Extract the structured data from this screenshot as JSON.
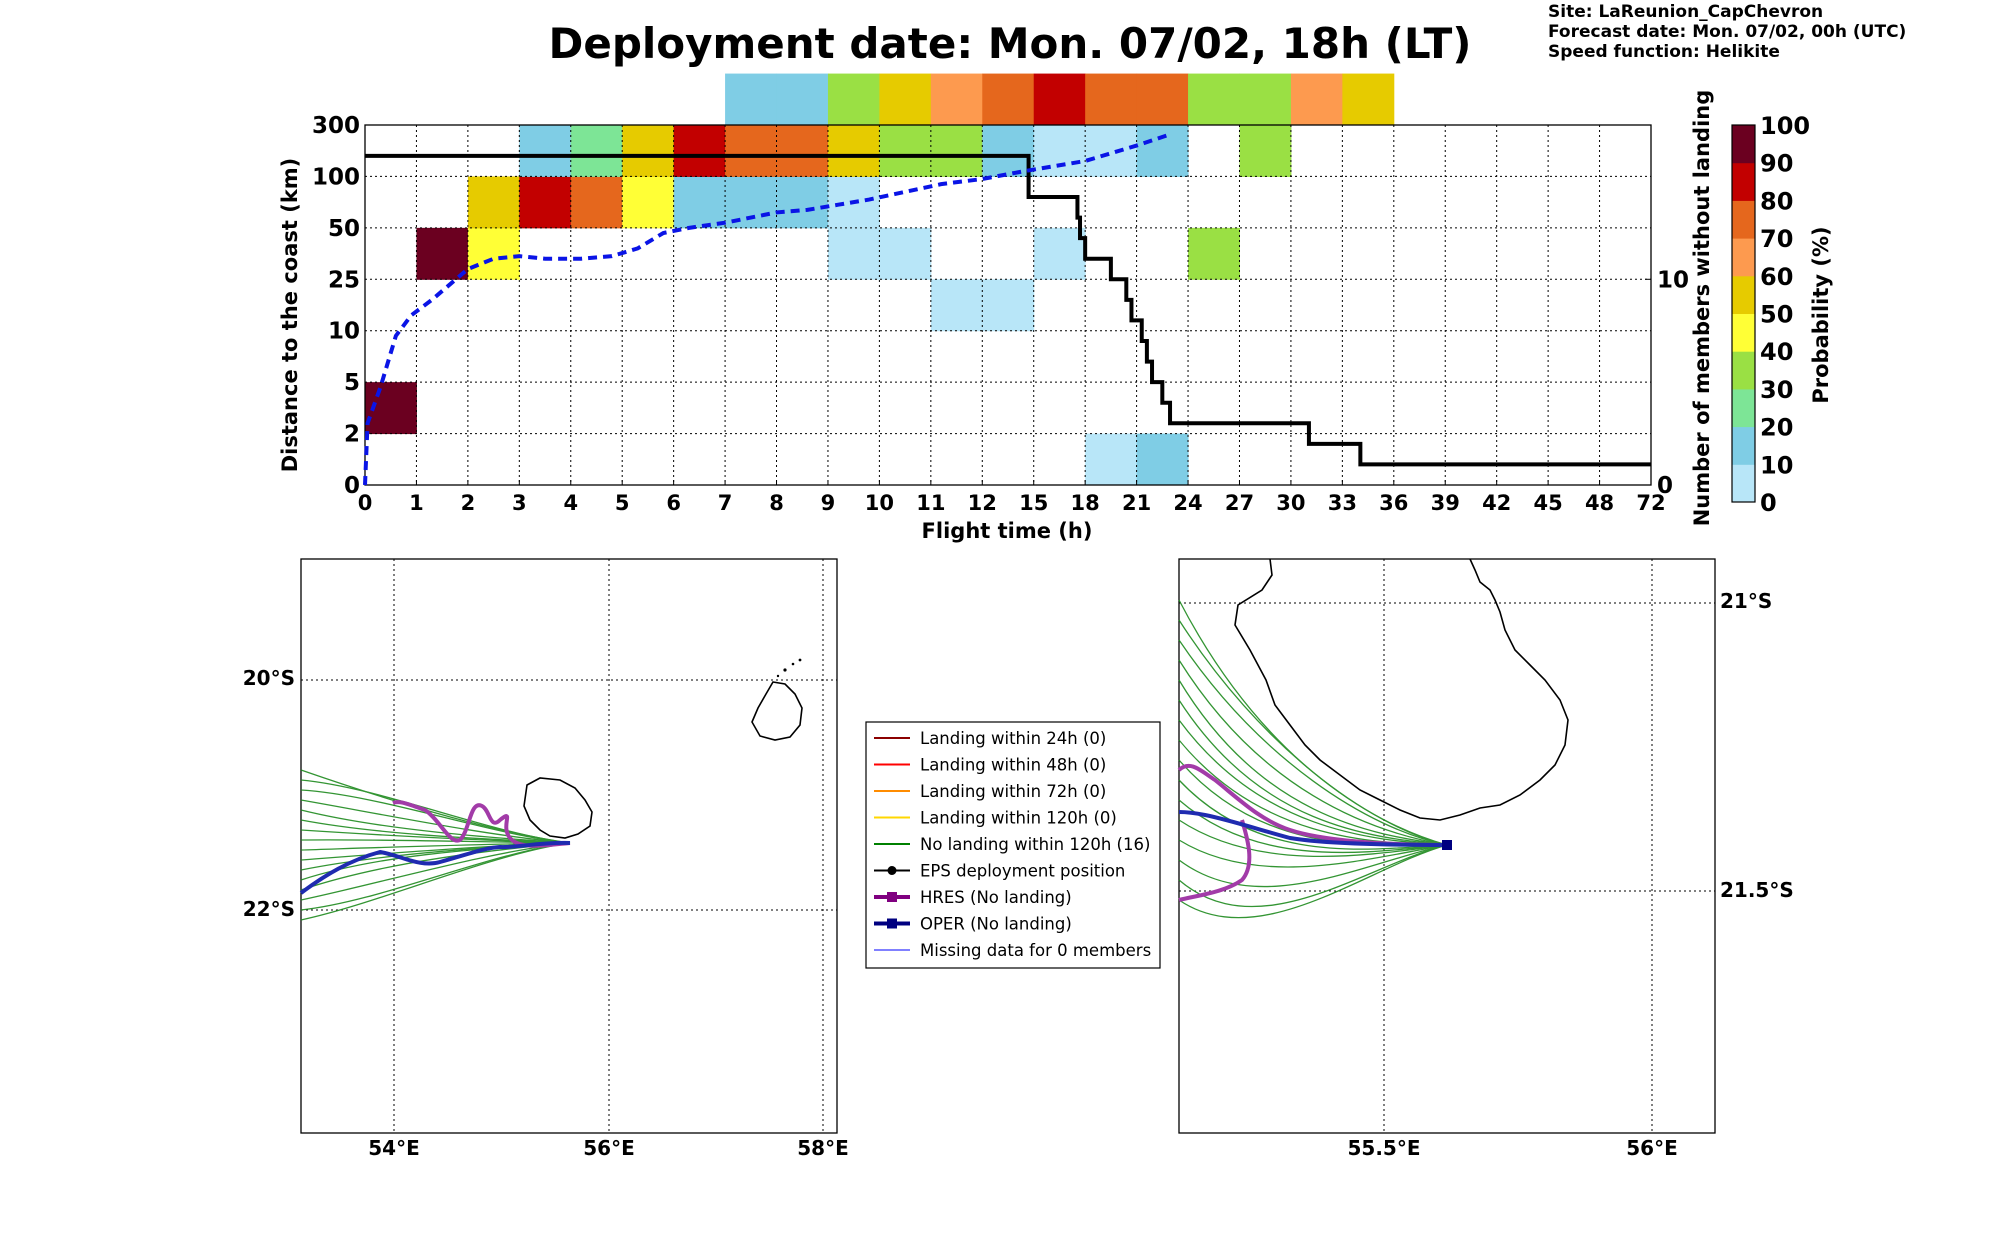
{
  "title": "Deployment date: Mon. 07/02, 18h (LT)",
  "info": {
    "site": "Site: LaReunion_CapChevron",
    "forecast": "Forecast date: Mon. 07/02, 00h (UTC)",
    "speed": "Speed function: Helikite"
  },
  "chart_data": [
    {
      "type": "heatmap",
      "name": "distance-probability",
      "xlabel": "Flight time (h)",
      "ylabel": "Distance to the coast (km)",
      "y2label": "Number of members without landing",
      "x_ticks": [
        "0",
        "1",
        "2",
        "3",
        "4",
        "5",
        "6",
        "7",
        "8",
        "9",
        "10",
        "11",
        "12",
        "15",
        "18",
        "21",
        "24",
        "27",
        "30",
        "33",
        "36",
        "39",
        "42",
        "45",
        "48",
        "72"
      ],
      "y_ticks": [
        "0",
        "2",
        "5",
        "10",
        "25",
        "50",
        "100",
        "300"
      ],
      "y2_ticks": [
        "0",
        "10"
      ],
      "y2_range": [
        0,
        17.5
      ],
      "colorbar": {
        "label": "Probability (%)",
        "ticks": [
          "0",
          "10",
          "20",
          "30",
          "40",
          "50",
          "60",
          "70",
          "80",
          "90",
          "100"
        ],
        "colors": [
          "#b8e6f8",
          "#7fcde5",
          "#7de596",
          "#9ae044",
          "#ffff36",
          "#e6cb00",
          "#fd9a4f",
          "#e5671d",
          "#c20000",
          "#6b0020"
        ]
      },
      "cells": [
        {
          "x": 0,
          "y": 1,
          "color": "#6b0020"
        },
        {
          "x": 1,
          "y": 4,
          "color": "#6b0020"
        },
        {
          "x": 2,
          "y": 4,
          "color": "#ffff36"
        },
        {
          "x": 2,
          "y": 5,
          "color": "#e6cb00"
        },
        {
          "x": 3,
          "y": 5,
          "color": "#c20000"
        },
        {
          "x": 3,
          "y": 6,
          "color": "#7fcde5"
        },
        {
          "x": 4,
          "y": 5,
          "color": "#e5671d"
        },
        {
          "x": 4,
          "y": 6,
          "color": "#7de596"
        },
        {
          "x": 5,
          "y": 5,
          "color": "#ffff36"
        },
        {
          "x": 5,
          "y": 6,
          "color": "#e6cb00"
        },
        {
          "x": 6,
          "y": 5,
          "color": "#7fcde5"
        },
        {
          "x": 6,
          "y": 6,
          "color": "#c20000"
        },
        {
          "x": 7,
          "y": 5,
          "color": "#7fcde5"
        },
        {
          "x": 7,
          "y": 6,
          "color": "#e5671d"
        },
        {
          "x": 7,
          "y": 7,
          "color": "#7fcde5"
        },
        {
          "x": 8,
          "y": 5,
          "color": "#7fcde5"
        },
        {
          "x": 8,
          "y": 6,
          "color": "#e5671d"
        },
        {
          "x": 8,
          "y": 7,
          "color": "#7fcde5"
        },
        {
          "x": 9,
          "y": 5,
          "color": "#b8e6f8"
        },
        {
          "x": 9,
          "y": 4,
          "color": "#b8e6f8"
        },
        {
          "x": 9,
          "y": 6,
          "color": "#e6cb00"
        },
        {
          "x": 9,
          "y": 7,
          "color": "#9ae044"
        },
        {
          "x": 10,
          "y": 4,
          "color": "#b8e6f8"
        },
        {
          "x": 10,
          "y": 6,
          "color": "#9ae044"
        },
        {
          "x": 10,
          "y": 7,
          "color": "#e6cb00"
        },
        {
          "x": 11,
          "y": 3,
          "color": "#b8e6f8"
        },
        {
          "x": 11,
          "y": 6,
          "color": "#9ae044"
        },
        {
          "x": 11,
          "y": 7,
          "color": "#fd9a4f"
        },
        {
          "x": 12,
          "y": 3,
          "color": "#b8e6f8"
        },
        {
          "x": 12,
          "y": 6,
          "color": "#7fcde5"
        },
        {
          "x": 12,
          "y": 7,
          "color": "#e5671d"
        },
        {
          "x": 13,
          "y": 4,
          "color": "#b8e6f8"
        },
        {
          "x": 13,
          "y": 6,
          "color": "#b8e6f8"
        },
        {
          "x": 13,
          "y": 7,
          "color": "#c20000"
        },
        {
          "x": 14,
          "y": 0,
          "color": "#b8e6f8"
        },
        {
          "x": 14,
          "y": 6,
          "color": "#b8e6f8"
        },
        {
          "x": 14,
          "y": 7,
          "color": "#e5671d"
        },
        {
          "x": 15,
          "y": 0,
          "color": "#7fcde5"
        },
        {
          "x": 15,
          "y": 6,
          "color": "#7fcde5"
        },
        {
          "x": 15,
          "y": 7,
          "color": "#e5671d"
        },
        {
          "x": 16,
          "y": 4,
          "color": "#9ae044"
        },
        {
          "x": 16,
          "y": 7,
          "color": "#9ae044"
        },
        {
          "x": 17,
          "y": 6,
          "color": "#9ae044"
        },
        {
          "x": 17,
          "y": 7,
          "color": "#9ae044"
        },
        {
          "x": 18,
          "y": 7,
          "color": "#fd9a4f"
        },
        {
          "x": 19,
          "y": 7,
          "color": "#e6cb00"
        }
      ],
      "members_without_landing": [
        [
          0,
          16
        ],
        [
          12.9,
          16
        ],
        [
          12.9,
          14
        ],
        [
          13.85,
          14
        ],
        [
          13.85,
          13
        ],
        [
          13.9,
          13
        ],
        [
          13.9,
          12
        ],
        [
          14.0,
          12
        ],
        [
          14.0,
          11
        ],
        [
          14.5,
          11
        ],
        [
          14.5,
          10
        ],
        [
          14.8,
          10
        ],
        [
          14.8,
          9
        ],
        [
          14.9,
          9
        ],
        [
          14.9,
          8
        ],
        [
          15.1,
          8
        ],
        [
          15.1,
          7
        ],
        [
          15.2,
          7
        ],
        [
          15.2,
          6
        ],
        [
          15.3,
          6
        ],
        [
          15.3,
          5
        ],
        [
          15.5,
          5
        ],
        [
          15.5,
          4
        ],
        [
          15.65,
          4
        ],
        [
          15.65,
          3
        ],
        [
          18.35,
          3
        ],
        [
          18.35,
          2
        ],
        [
          19.35,
          2
        ],
        [
          19.35,
          1
        ],
        [
          25,
          1
        ]
      ],
      "mean_distance_index": [
        [
          0,
          0
        ],
        [
          0.05,
          1.2
        ],
        [
          0.3,
          1.9
        ],
        [
          0.6,
          2.9
        ],
        [
          0.9,
          3.3
        ],
        [
          1.3,
          3.6
        ],
        [
          2.0,
          4.2
        ],
        [
          2.5,
          4.4
        ],
        [
          3.0,
          4.45
        ],
        [
          3.5,
          4.4
        ],
        [
          4.2,
          4.4
        ],
        [
          4.8,
          4.45
        ],
        [
          5.3,
          4.6
        ],
        [
          5.8,
          4.9
        ],
        [
          6.3,
          5.0
        ],
        [
          7.0,
          5.1
        ],
        [
          7.5,
          5.2
        ],
        [
          8.0,
          5.3
        ],
        [
          8.6,
          5.35
        ],
        [
          9.2,
          5.45
        ],
        [
          9.8,
          5.55
        ],
        [
          10.5,
          5.7
        ],
        [
          11.2,
          5.85
        ],
        [
          12.0,
          5.95
        ],
        [
          12.8,
          6.1
        ],
        [
          13.4,
          6.2
        ],
        [
          14.0,
          6.3
        ],
        [
          14.5,
          6.45
        ],
        [
          15.0,
          6.6
        ],
        [
          15.6,
          6.8
        ]
      ]
    },
    {
      "type": "map",
      "name": "regional-map",
      "lon_ticks": [
        "54°E",
        "56°E",
        "58°E"
      ],
      "lat_ticks": [
        "20°S",
        "22°S"
      ]
    },
    {
      "type": "map",
      "name": "zoom-map",
      "lon_ticks": [
        "55.5°E",
        "56°E"
      ],
      "lat_ticks": [
        "21°S",
        "21.5°S"
      ]
    }
  ],
  "legend": [
    {
      "label": "Landing within 24h (0)",
      "color": "#8b0000",
      "marker": "",
      "width": 2
    },
    {
      "label": "Landing within 48h (0)",
      "color": "#ff0000",
      "marker": "",
      "width": 2
    },
    {
      "label": "Landing within 72h (0)",
      "color": "#ff8c00",
      "marker": "",
      "width": 2
    },
    {
      "label": "Landing within 120h (0)",
      "color": "#ffd700",
      "marker": "",
      "width": 2
    },
    {
      "label": "No landing within 120h (16)",
      "color": "#008000",
      "marker": "",
      "width": 2
    },
    {
      "label": "EPS deployment position",
      "color": "#000000",
      "marker": "circle",
      "width": 2
    },
    {
      "label": "HRES (No landing)",
      "color": "#800080",
      "marker": "square",
      "width": 4
    },
    {
      "label": "OPER (No landing)",
      "color": "#000080",
      "marker": "square",
      "width": 4
    },
    {
      "label": "Missing data for 0 members",
      "color": "#0000ff",
      "marker": "",
      "width": 1
    }
  ]
}
